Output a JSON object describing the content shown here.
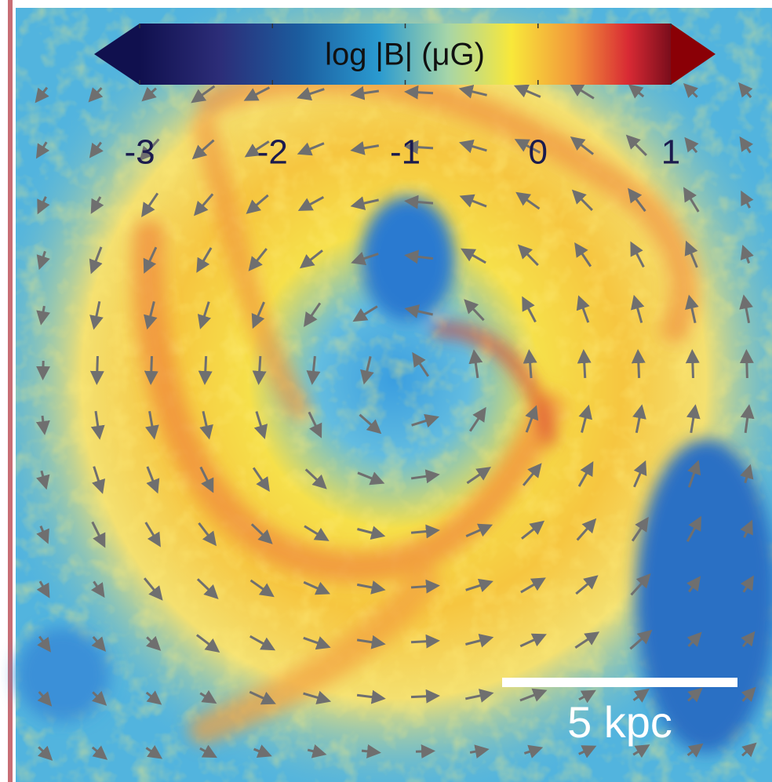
{
  "colorbar": {
    "label": "log |B| (μG)",
    "lim": [
      -3,
      1
    ],
    "ticks": [
      -3,
      -2,
      -1,
      0,
      1
    ]
  },
  "scale_bar": {
    "label": "5 kpc"
  }
}
